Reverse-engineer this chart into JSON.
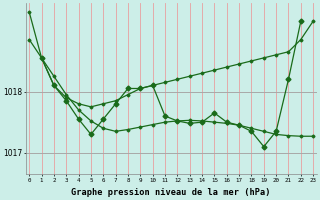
{
  "hours": [
    0,
    1,
    2,
    3,
    4,
    5,
    6,
    7,
    8,
    9,
    10,
    11,
    12,
    13,
    14,
    15,
    16,
    17,
    18,
    19,
    20,
    21,
    22,
    23
  ],
  "line1": [
    1019.3,
    1018.55,
    1018.1,
    1017.9,
    1017.8,
    1017.75,
    1017.8,
    1017.85,
    1017.95,
    1018.05,
    1018.1,
    1018.15,
    1018.2,
    1018.25,
    1018.3,
    1018.35,
    1018.4,
    1018.45,
    1018.5,
    1018.55,
    1018.6,
    1018.65,
    1018.85,
    1019.15
  ],
  "line2": [
    1018.85,
    1018.55,
    1018.25,
    1017.95,
    1017.7,
    1017.52,
    1017.4,
    1017.35,
    1017.38,
    1017.42,
    1017.46,
    1017.5,
    1017.52,
    1017.53,
    1017.52,
    1017.5,
    1017.48,
    1017.45,
    1017.4,
    1017.35,
    1017.3,
    1017.28,
    1017.27,
    1017.27
  ],
  "line3_x": [
    1,
    2,
    3,
    4,
    5,
    6,
    7,
    8,
    9,
    10,
    11,
    12,
    13,
    14,
    15,
    16,
    17,
    18,
    19,
    20,
    21,
    22,
    23
  ],
  "line3": [
    1018.55,
    1018.1,
    1017.85,
    1017.55,
    1017.3,
    1017.55,
    1017.8,
    1018.05,
    1018.05,
    1018.1,
    1017.6,
    1017.52,
    1017.48,
    1017.5,
    1017.65,
    1017.5,
    1017.45,
    1017.35,
    1017.1,
    1017.35,
    1018.2,
    1019.15,
    null
  ],
  "bg_color": "#cceee8",
  "line_color": "#1a6b1a",
  "grid_color_v": "#e8a0a0",
  "grid_color_h": "#a8a8a8",
  "xlabel": "Graphe pression niveau de la mer (hPa)",
  "ylim": [
    1016.65,
    1019.45
  ],
  "yticks": [
    1017,
    1018
  ],
  "xticks": [
    0,
    1,
    2,
    3,
    4,
    5,
    6,
    7,
    8,
    9,
    10,
    11,
    12,
    13,
    14,
    15,
    16,
    17,
    18,
    19,
    20,
    21,
    22,
    23
  ]
}
